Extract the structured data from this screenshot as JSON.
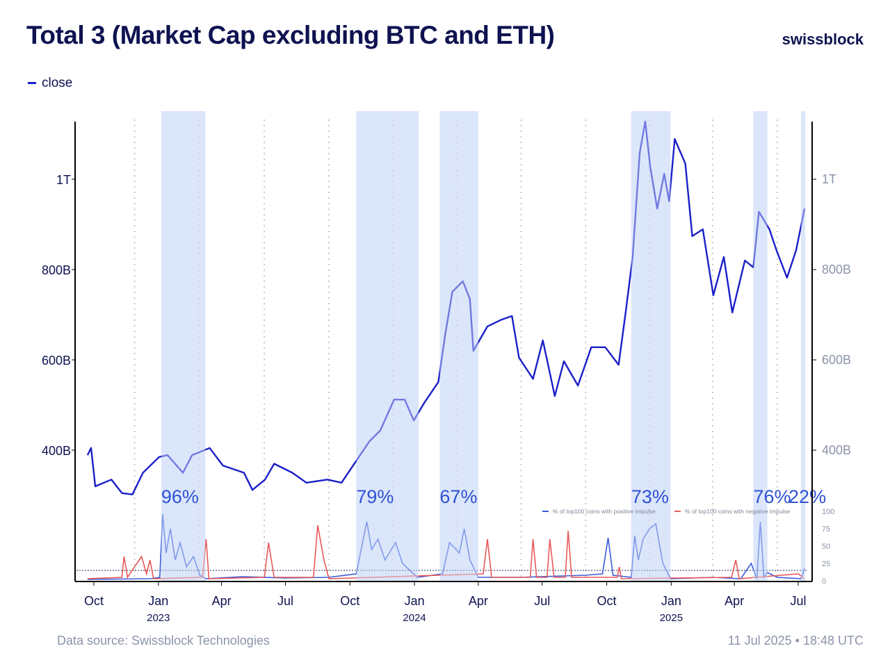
{
  "header": {
    "title": "Total 3 (Market Cap excluding BTC and ETH)",
    "logo": "swissblock",
    "legend_label": "close"
  },
  "footer": {
    "source": "Data source: Swissblock Technologies",
    "timestamp": "11 Jul 2025 • 18:48 UTC"
  },
  "colors": {
    "close": "#1a1fc8",
    "shade": "#dbe6fb",
    "positive": "#3a5bd9",
    "negative": "#e8585a",
    "axis_text_left": "#0e1250",
    "axis_text_right": "#8a93a8",
    "label": "#2f52d4"
  },
  "chart_data": [
    {
      "type": "line",
      "series": [
        {
          "name": "close",
          "values": [
            [
              "2022-09-22",
              389
            ],
            [
              "2022-09-27",
              405
            ],
            [
              "2022-10-03",
              320
            ],
            [
              "2022-10-26",
              335
            ],
            [
              "2022-11-10",
              305
            ],
            [
              "2022-11-25",
              302
            ],
            [
              "2022-12-10",
              350
            ],
            [
              "2023-01-02",
              385
            ],
            [
              "2023-01-14",
              389
            ],
            [
              "2023-02-05",
              350
            ],
            [
              "2023-02-18",
              389
            ],
            [
              "2023-03-15",
              405
            ],
            [
              "2023-04-03",
              366
            ],
            [
              "2023-05-03",
              350
            ],
            [
              "2023-05-15",
              312
            ],
            [
              "2023-06-02",
              335
            ],
            [
              "2023-06-15",
              370
            ],
            [
              "2023-07-11",
              350
            ],
            [
              "2023-07-31",
              328
            ],
            [
              "2023-08-30",
              335
            ],
            [
              "2023-09-19",
              328
            ],
            [
              "2023-10-09",
              374
            ],
            [
              "2023-10-29",
              420
            ],
            [
              "2023-11-13",
              443
            ],
            [
              "2023-12-03",
              512
            ],
            [
              "2023-12-18",
              512
            ],
            [
              "2023-12-31",
              466
            ],
            [
              "2024-01-15",
              505
            ],
            [
              "2024-02-04",
              551
            ],
            [
              "2024-02-14",
              658
            ],
            [
              "2024-02-24",
              751
            ],
            [
              "2024-03-10",
              774
            ],
            [
              "2024-03-20",
              735
            ],
            [
              "2024-03-25",
              620
            ],
            [
              "2024-04-14",
              674
            ],
            [
              "2024-05-04",
              689
            ],
            [
              "2024-05-19",
              697
            ],
            [
              "2024-05-29",
              605
            ],
            [
              "2024-06-18",
              558
            ],
            [
              "2024-07-02",
              643
            ],
            [
              "2024-07-19",
              520
            ],
            [
              "2024-08-01",
              597
            ],
            [
              "2024-08-21",
              543
            ],
            [
              "2024-09-09",
              628
            ],
            [
              "2024-09-29",
              628
            ],
            [
              "2024-10-18",
              589
            ],
            [
              "2024-10-28",
              705
            ],
            [
              "2024-11-07",
              828
            ],
            [
              "2024-11-17",
              1058
            ],
            [
              "2024-11-25",
              1128
            ],
            [
              "2024-12-02",
              1028
            ],
            [
              "2024-12-12",
              935
            ],
            [
              "2024-12-22",
              1012
            ],
            [
              "2024-12-29",
              951
            ],
            [
              "2025-01-06",
              1089
            ],
            [
              "2025-01-21",
              1035
            ],
            [
              "2025-01-31",
              874
            ],
            [
              "2025-02-15",
              889
            ],
            [
              "2025-03-02",
              743
            ],
            [
              "2025-03-17",
              828
            ],
            [
              "2025-03-29",
              705
            ],
            [
              "2025-04-16",
              820
            ],
            [
              "2025-04-28",
              805
            ],
            [
              "2025-05-06",
              928
            ],
            [
              "2025-05-21",
              889
            ],
            [
              "2025-05-31",
              843
            ],
            [
              "2025-06-15",
              782
            ],
            [
              "2025-06-28",
              843
            ],
            [
              "2025-07-10",
              935
            ]
          ]
        }
      ],
      "y_ticks": [
        {
          "value": 400,
          "label": "400B"
        },
        {
          "value": 600,
          "label": "600B"
        },
        {
          "value": 800,
          "label": "800B"
        },
        {
          "value": 1000,
          "label": "1T"
        }
      ],
      "ylim": [
        260,
        1130
      ],
      "x_ticks": [
        {
          "date": "2022-10-01",
          "label": "Oct",
          "year": ""
        },
        {
          "date": "2023-01-01",
          "label": "Jan",
          "year": "2023"
        },
        {
          "date": "2023-04-01",
          "label": "Apr",
          "year": ""
        },
        {
          "date": "2023-07-01",
          "label": "Jul",
          "year": ""
        },
        {
          "date": "2023-10-01",
          "label": "Oct",
          "year": ""
        },
        {
          "date": "2024-01-01",
          "label": "Jan",
          "year": "2024"
        },
        {
          "date": "2024-04-01",
          "label": "Apr",
          "year": ""
        },
        {
          "date": "2024-07-01",
          "label": "Jul",
          "year": ""
        },
        {
          "date": "2024-10-01",
          "label": "Oct",
          "year": ""
        },
        {
          "date": "2025-01-01",
          "label": "Jan",
          "year": "2025"
        },
        {
          "date": "2025-04-01",
          "label": "Apr",
          "year": ""
        },
        {
          "date": "2025-07-01",
          "label": "Jul",
          "year": ""
        }
      ],
      "shaded_regions": [
        {
          "start": "2023-01-05",
          "end": "2023-03-09",
          "label": "96%"
        },
        {
          "start": "2023-10-10",
          "end": "2024-01-07",
          "label": "79%"
        },
        {
          "start": "2024-02-06",
          "end": "2024-04-01",
          "label": "67%"
        },
        {
          "start": "2024-11-05",
          "end": "2024-12-31",
          "label": "73%"
        },
        {
          "start": "2025-04-28",
          "end": "2025-05-18",
          "label": "76%"
        },
        {
          "start": "2025-07-05",
          "end": "2025-07-11",
          "label": "22%"
        }
      ],
      "grid": "dotted vertical"
    },
    {
      "type": "line",
      "series": [
        {
          "name": "% of top100 coins with positive impulse",
          "values": [
            [
              "2022-09-22",
              2
            ],
            [
              "2022-12-20",
              3
            ],
            [
              "2023-01-03",
              5
            ],
            [
              "2023-01-07",
              96
            ],
            [
              "2023-01-12",
              40
            ],
            [
              "2023-01-18",
              75
            ],
            [
              "2023-01-25",
              30
            ],
            [
              "2023-02-01",
              55
            ],
            [
              "2023-02-10",
              20
            ],
            [
              "2023-02-20",
              35
            ],
            [
              "2023-03-01",
              8
            ],
            [
              "2023-03-10",
              3
            ],
            [
              "2023-05-01",
              6
            ],
            [
              "2023-07-01",
              4
            ],
            [
              "2023-09-01",
              5
            ],
            [
              "2023-10-10",
              10
            ],
            [
              "2023-10-18",
              50
            ],
            [
              "2023-10-25",
              85
            ],
            [
              "2023-11-01",
              45
            ],
            [
              "2023-11-10",
              60
            ],
            [
              "2023-11-20",
              30
            ],
            [
              "2023-12-05",
              55
            ],
            [
              "2023-12-15",
              25
            ],
            [
              "2024-01-05",
              5
            ],
            [
              "2024-02-10",
              10
            ],
            [
              "2024-02-20",
              55
            ],
            [
              "2024-03-05",
              40
            ],
            [
              "2024-03-12",
              75
            ],
            [
              "2024-03-20",
              30
            ],
            [
              "2024-04-01",
              5
            ],
            [
              "2024-06-01",
              5
            ],
            [
              "2024-09-01",
              8
            ],
            [
              "2024-09-25",
              10
            ],
            [
              "2024-10-03",
              62
            ],
            [
              "2024-10-10",
              8
            ],
            [
              "2024-11-05",
              5
            ],
            [
              "2024-11-10",
              65
            ],
            [
              "2024-11-15",
              30
            ],
            [
              "2024-11-22",
              60
            ],
            [
              "2024-12-01",
              75
            ],
            [
              "2024-12-10",
              82
            ],
            [
              "2024-12-20",
              25
            ],
            [
              "2024-12-31",
              3
            ],
            [
              "2025-03-01",
              5
            ],
            [
              "2025-04-10",
              3
            ],
            [
              "2025-04-25",
              25
            ],
            [
              "2025-05-03",
              3
            ],
            [
              "2025-05-08",
              85
            ],
            [
              "2025-05-13",
              5
            ],
            [
              "2025-05-18",
              12
            ],
            [
              "2025-06-01",
              5
            ],
            [
              "2025-07-05",
              3
            ],
            [
              "2025-07-10",
              18
            ]
          ]
        },
        {
          "name": "% of top100 coins with negative impulse",
          "values": [
            [
              "2022-09-22",
              3
            ],
            [
              "2022-11-10",
              5
            ],
            [
              "2022-11-13",
              35
            ],
            [
              "2022-11-18",
              5
            ],
            [
              "2022-12-08",
              35
            ],
            [
              "2022-12-15",
              10
            ],
            [
              "2022-12-20",
              30
            ],
            [
              "2022-12-25",
              3
            ],
            [
              "2023-03-05",
              5
            ],
            [
              "2023-03-10",
              60
            ],
            [
              "2023-03-14",
              3
            ],
            [
              "2023-06-01",
              5
            ],
            [
              "2023-06-07",
              55
            ],
            [
              "2023-06-15",
              5
            ],
            [
              "2023-08-10",
              5
            ],
            [
              "2023-08-16",
              80
            ],
            [
              "2023-08-25",
              30
            ],
            [
              "2023-09-01",
              3
            ],
            [
              "2024-04-08",
              10
            ],
            [
              "2024-04-14",
              60
            ],
            [
              "2024-04-20",
              5
            ],
            [
              "2024-06-14",
              5
            ],
            [
              "2024-06-18",
              60
            ],
            [
              "2024-06-23",
              5
            ],
            [
              "2024-07-08",
              5
            ],
            [
              "2024-07-12",
              60
            ],
            [
              "2024-07-18",
              5
            ],
            [
              "2024-08-03",
              5
            ],
            [
              "2024-08-07",
              72
            ],
            [
              "2024-08-12",
              5
            ],
            [
              "2024-10-16",
              5
            ],
            [
              "2024-10-19",
              20
            ],
            [
              "2024-10-22",
              3
            ],
            [
              "2025-03-28",
              5
            ],
            [
              "2025-04-03",
              30
            ],
            [
              "2025-04-08",
              3
            ],
            [
              "2025-07-01",
              10
            ],
            [
              "2025-07-10",
              3
            ]
          ]
        }
      ],
      "y_ticks": [
        0,
        25,
        50,
        75,
        100
      ],
      "ylim": [
        0,
        100
      ],
      "threshold": 15,
      "legend_position": "top-right"
    }
  ]
}
